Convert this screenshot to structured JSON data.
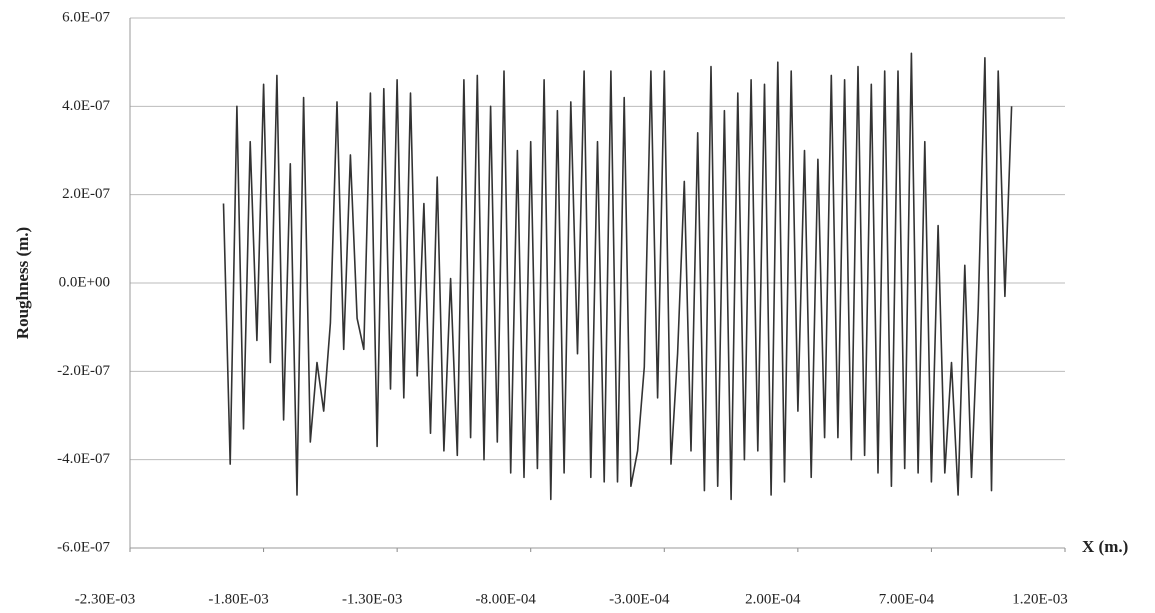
{
  "chart_data": {
    "type": "line",
    "y_label": "Roughness (m.)",
    "x_label": "X (m.)",
    "x": [
      -0.00195,
      -0.001925,
      -0.0019,
      -0.001875,
      -0.00185,
      -0.001825,
      -0.0018,
      -0.001775,
      -0.00175,
      -0.001725,
      -0.0017,
      -0.001675,
      -0.00165,
      -0.001625,
      -0.0016,
      -0.001575,
      -0.00155,
      -0.001525,
      -0.0015,
      -0.001475,
      -0.00145,
      -0.001425,
      -0.0014,
      -0.001375,
      -0.00135,
      -0.001325,
      -0.0013,
      -0.001275,
      -0.00125,
      -0.001225,
      -0.0012,
      -0.001175,
      -0.00115,
      -0.001125,
      -0.0011,
      -0.001075,
      -0.00105,
      -0.001025,
      -0.001,
      -0.000975,
      -0.00095,
      -0.000925,
      -0.0009,
      -0.000875,
      -0.00085,
      -0.000825,
      -0.0008,
      -0.000775,
      -0.00075,
      -0.000725,
      -0.0007,
      -0.000675,
      -0.00065,
      -0.000625,
      -0.0006,
      -0.000575,
      -0.00055,
      -0.000525,
      -0.0005,
      -0.000475,
      -0.00045,
      -0.000425,
      -0.0004,
      -0.000375,
      -0.00035,
      -0.000325,
      -0.0003,
      -0.000275,
      -0.00025,
      -0.000225,
      -0.0002,
      -0.000175,
      -0.00015,
      -0.000125,
      -0.0001,
      -7.5e-05,
      -5e-05,
      -2.5e-05,
      0,
      2.5e-05,
      5e-05,
      7.5e-05,
      0.0001,
      0.000125,
      0.00015,
      0.000175,
      0.0002,
      0.000225,
      0.00025,
      0.000275,
      0.0003,
      0.000325,
      0.00035,
      0.000375,
      0.0004,
      0.000425,
      0.00045,
      0.000475,
      0.0005,
      0.000525,
      0.00055,
      0.000575,
      0.0006,
      0.000625,
      0.00065,
      0.000675,
      0.0007,
      0.000725,
      0.00075,
      0.000775,
      0.0008,
      0.000825,
      0.00085,
      0.000875,
      0.0009,
      0.000925,
      0.00095,
      0.000975,
      0.001
    ],
    "series": [
      {
        "color": "#333333",
        "values": [
          1.8e-07,
          -4.1e-07,
          4e-07,
          -3.3e-07,
          3.2e-07,
          -1.3e-07,
          4.5e-07,
          -1.8e-07,
          4.7e-07,
          -3.1e-07,
          2.7e-07,
          -4.8e-07,
          4.2e-07,
          -3.6e-07,
          -1.8e-07,
          -2.9e-07,
          -9e-08,
          4.1e-07,
          -1.5e-07,
          2.9e-07,
          -8e-08,
          -1.5e-07,
          4.3e-07,
          -3.7e-07,
          4.4e-07,
          -2.4e-07,
          4.6e-07,
          -2.6e-07,
          4.3e-07,
          -2.1e-07,
          1.8e-07,
          -3.4e-07,
          2.4e-07,
          -3.8e-07,
          1e-08,
          -3.9e-07,
          4.6e-07,
          -3.5e-07,
          4.7e-07,
          -4e-07,
          4e-07,
          -3.6e-07,
          4.8e-07,
          -4.3e-07,
          3e-07,
          -4.4e-07,
          3.2e-07,
          -4.2e-07,
          4.6e-07,
          -4.9e-07,
          3.9e-07,
          -4.3e-07,
          4.1e-07,
          -1.6e-07,
          4.8e-07,
          -4.4e-07,
          3.2e-07,
          -4.5e-07,
          4.8e-07,
          -4.5e-07,
          4.2e-07,
          -4.6e-07,
          -3.8e-07,
          -1.9e-07,
          4.8e-07,
          -2.6e-07,
          4.8e-07,
          -4.1e-07,
          -1.6e-07,
          2.3e-07,
          -3.8e-07,
          3.4e-07,
          -4.7e-07,
          4.9e-07,
          -4.6e-07,
          3.9e-07,
          -4.9e-07,
          4.3e-07,
          -4e-07,
          4.6e-07,
          -3.8e-07,
          4.5e-07,
          -4.8e-07,
          5e-07,
          -4.5e-07,
          4.8e-07,
          -2.9e-07,
          3e-07,
          -4.4e-07,
          2.8e-07,
          -3.5e-07,
          4.7e-07,
          -3.5e-07,
          4.6e-07,
          -4e-07,
          4.9e-07,
          -3.9e-07,
          4.5e-07,
          -4.3e-07,
          4.8e-07,
          -4.6e-07,
          4.8e-07,
          -4.2e-07,
          5.2e-07,
          -4.3e-07,
          3.2e-07,
          -4.5e-07,
          1.3e-07,
          -4.3e-07,
          -1.8e-07,
          -4.8e-07,
          4e-08,
          -4.4e-07,
          -6e-08,
          5.1e-07,
          -4.7e-07,
          4.8e-07,
          -3e-08,
          4e-07
        ]
      }
    ],
    "xlim": [
      -0.0023,
      0.0012
    ],
    "xticks": [
      {
        "value": -0.0023,
        "label": "-2.30E-03"
      },
      {
        "value": -0.0018,
        "label": "-1.80E-03"
      },
      {
        "value": -0.0013,
        "label": "-1.30E-03"
      },
      {
        "value": -0.0008,
        "label": "-8.00E-04"
      },
      {
        "value": -0.0003,
        "label": "-3.00E-04"
      },
      {
        "value": 0.0002,
        "label": "2.00E-04"
      },
      {
        "value": 0.0007,
        "label": "7.00E-04"
      },
      {
        "value": 0.0012,
        "label": "1.20E-03"
      }
    ],
    "ylim": [
      -6e-07,
      6e-07
    ],
    "yticks": [
      {
        "value": -6e-07,
        "label": "-6.0E-07"
      },
      {
        "value": -4e-07,
        "label": "-4.0E-07"
      },
      {
        "value": -2e-07,
        "label": "-2.0E-07"
      },
      {
        "value": 0,
        "label": "0.0E+00"
      },
      {
        "value": 2e-07,
        "label": "2.0E-07"
      },
      {
        "value": 4e-07,
        "label": "4.0E-07"
      },
      {
        "value": 6e-07,
        "label": "6.0E-07"
      }
    ],
    "grid": true
  }
}
